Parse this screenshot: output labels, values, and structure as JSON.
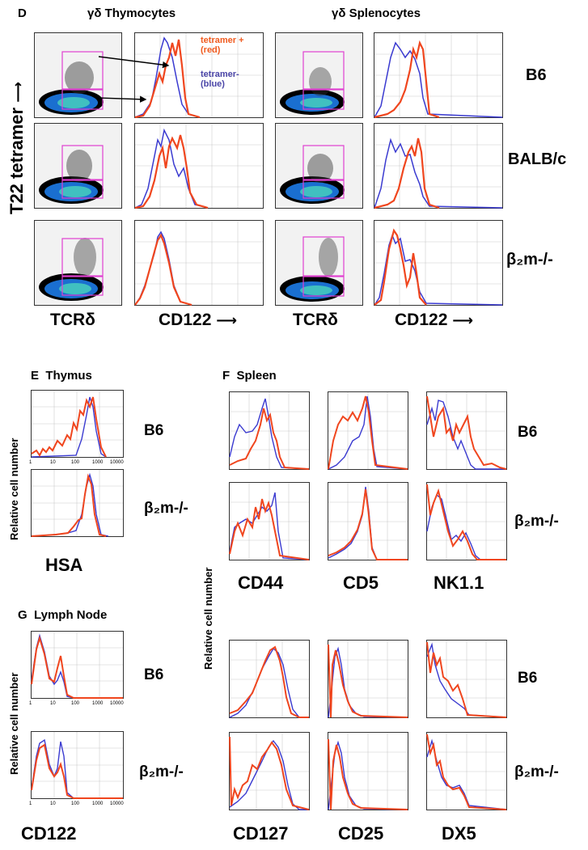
{
  "panel_D": {
    "letter": "D",
    "left_title": "γδ Thymocytes",
    "right_title": "γδ Splenocytes",
    "y_axis_label": "T22 tetramer",
    "x_label_flow": "TCRδ",
    "x_label_hist": "CD122",
    "legend_pos": "tetramer +",
    "legend_pos_sub": "(red)",
    "legend_neg": "tetramer-",
    "legend_neg_sub": "(blue)",
    "strains": [
      "B6",
      "BALB/c",
      "β₂m-/-"
    ]
  },
  "panel_E": {
    "letter": "E",
    "title": "Thymus",
    "y_label": "Relative cell number",
    "x_label": "HSA",
    "strains": [
      "B6",
      "β₂m-/-"
    ]
  },
  "panel_F": {
    "letter": "F",
    "title": "Spleen",
    "y_label": "Relative cell number",
    "x_labels_top": [
      "CD44",
      "CD5",
      "NK1.1"
    ],
    "x_labels_bottom": [
      "CD127",
      "CD25",
      "DX5"
    ],
    "strains_top": [
      "B6",
      "β₂m-/-"
    ],
    "strains_bottom": [
      "B6",
      "β₂m-/-"
    ]
  },
  "panel_G": {
    "letter": "G",
    "title": "Lymph Node",
    "y_label": "Relative cell number",
    "x_label": "CD122",
    "strains": [
      "B6",
      "β₂m-/-"
    ]
  },
  "tick_labels_4dec": [
    "1",
    "10",
    "100",
    "1000",
    "10000"
  ],
  "tick_labels_3dec": [
    "1",
    "10",
    "100"
  ],
  "colors": {
    "red": "#f0461e",
    "blue": "#3a3ad0",
    "gate": "#e040d0"
  }
}
